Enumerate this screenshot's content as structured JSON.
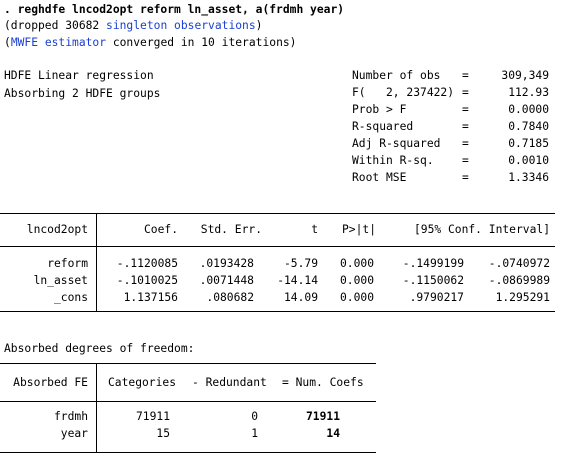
{
  "command": {
    "text": ". reghdfe lncod2opt reform ln_asset, a(frdmh year)",
    "note_dropped_prefix": "(dropped 30682 ",
    "note_dropped_link": "singleton observations",
    "note_dropped_suffix": ")",
    "note_mwfe_prefix": "(",
    "note_mwfe_link": "MWFE estimator",
    "note_mwfe_suffix": " converged in 10 iterations)"
  },
  "header": {
    "model": "HDFE Linear regression",
    "absorbing": "Absorbing 2 HDFE groups",
    "stats": [
      {
        "label": "Number of obs",
        "eq": "=",
        "value": "309,349"
      },
      {
        "label": "F(   2, 237422)",
        "eq": "=",
        "value": "112.93"
      },
      {
        "label": "Prob > F",
        "eq": "=",
        "value": "0.0000"
      },
      {
        "label": "R-squared",
        "eq": "=",
        "value": "0.7840"
      },
      {
        "label": "Adj R-squared",
        "eq": "=",
        "value": "0.7185"
      },
      {
        "label": "Within R-sq.",
        "eq": "=",
        "value": "0.0010"
      },
      {
        "label": "Root MSE",
        "eq": "=",
        "value": "1.3346"
      }
    ]
  },
  "coef_table": {
    "depvar": "lncod2opt",
    "columns": [
      "Coef.",
      "Std. Err.",
      "t",
      "P>|t|",
      "[95% Conf. Interval]"
    ],
    "rows": [
      {
        "name": "reform",
        "coef": "-.1120085",
        "se": ".0193428",
        "t": "-5.79",
        "p": "0.000",
        "lo": "-.1499199",
        "hi": "-.0740972"
      },
      {
        "name": "ln_asset",
        "coef": "-.1010025",
        "se": ".0071448",
        "t": "-14.14",
        "p": "0.000",
        "lo": "-.1150062",
        "hi": "-.0869989"
      },
      {
        "name": "_cons",
        "coef": "1.137156",
        "se": ".080682",
        "t": "14.09",
        "p": "0.000",
        "lo": ".9790217",
        "hi": "1.295291"
      }
    ]
  },
  "absorbed": {
    "title": "Absorbed degrees of freedom:",
    "columns": [
      "Absorbed FE",
      "Categories",
      "- Redundant",
      "= Num. Coefs"
    ],
    "rows": [
      {
        "fe": "frdmh",
        "categories": "71911",
        "redundant": "0",
        "num": "71911"
      },
      {
        "fe": "year",
        "categories": "15",
        "redundant": "1",
        "num": "14"
      }
    ]
  }
}
